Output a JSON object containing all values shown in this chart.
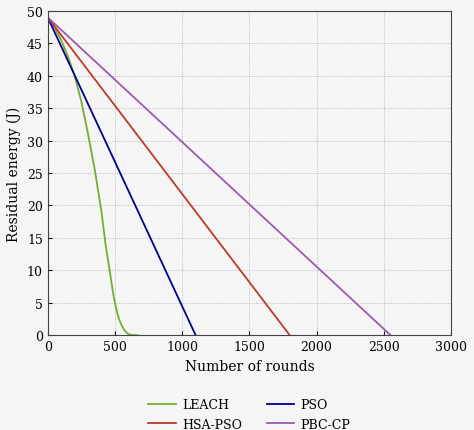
{
  "title": "",
  "xlabel": "Number of rounds",
  "ylabel": "Residual energy (J)",
  "xlim": [
    0,
    3000
  ],
  "ylim": [
    0,
    50
  ],
  "xticks": [
    0,
    500,
    1000,
    1500,
    2000,
    2500,
    3000
  ],
  "yticks": [
    0,
    5,
    10,
    15,
    20,
    25,
    30,
    35,
    40,
    45,
    50
  ],
  "series": [
    {
      "label": "LEACH",
      "color": "#77ac30",
      "x": [
        0,
        50,
        100,
        150,
        200,
        250,
        300,
        350,
        400,
        430,
        460,
        490,
        510,
        530,
        550,
        570,
        590,
        610,
        630,
        650,
        670
      ],
      "y": [
        49,
        47.5,
        45.5,
        43,
        40,
        36,
        31,
        25.5,
        19,
        14,
        10,
        6,
        4,
        2.5,
        1.5,
        0.8,
        0.3,
        0.1,
        0.02,
        0.0,
        0.0
      ]
    },
    {
      "label": "PSO",
      "color": "#00008b",
      "x": [
        0,
        1100
      ],
      "y": [
        49,
        0
      ]
    },
    {
      "label": "HSA-PSO",
      "color": "#c0392b",
      "x": [
        0,
        1800
      ],
      "y": [
        49,
        0
      ]
    },
    {
      "label": "PBC-CP",
      "color": "#9b59b6",
      "x": [
        0,
        2550
      ],
      "y": [
        49,
        0
      ]
    }
  ],
  "figsize": [
    4.74,
    4.31
  ],
  "dpi": 100,
  "background_color": "#f5f5f5",
  "grid_color": "#aaaaaa",
  "linewidth": 1.3,
  "font_family": "DejaVu Serif",
  "tick_fontsize": 9,
  "label_fontsize": 10,
  "legend_fontsize": 9
}
